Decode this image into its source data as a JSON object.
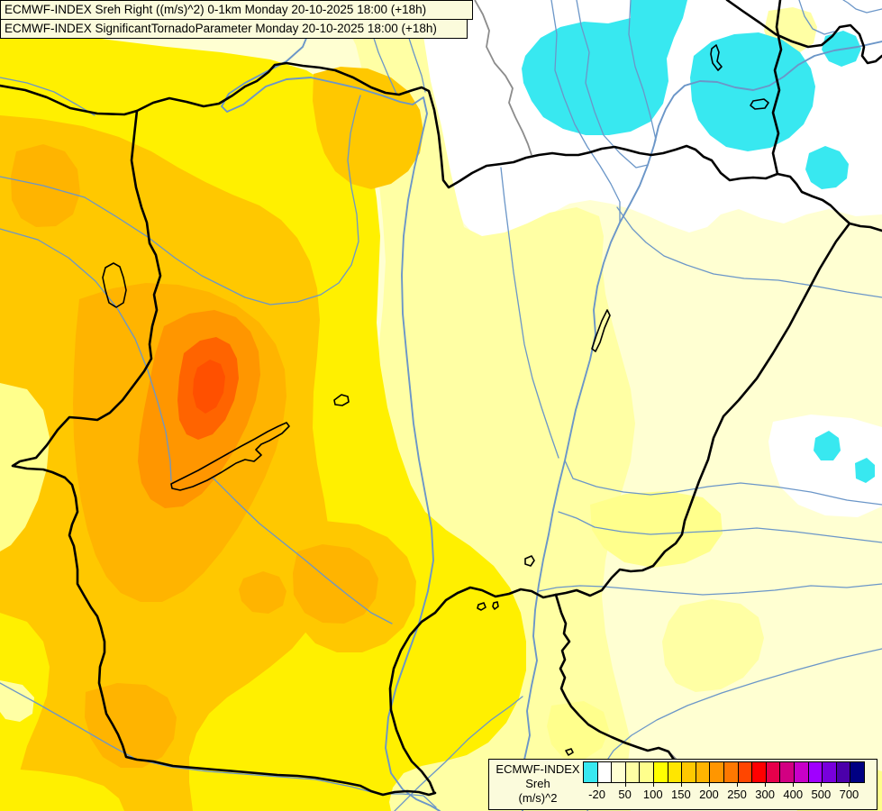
{
  "header": {
    "title_line1": "ECMWF-INDEX Sreh Right ((m/s)^2) 0-1km Monday 20-10-2025 18:00 (+18h)",
    "title_line2": "ECMWF-INDEX SignificantTornadoParameter Monday 20-10-2025 18:00 (+18h)"
  },
  "legend": {
    "product_label": "ECMWF-INDEX",
    "parameter_label": "Sreh",
    "units_label": "(m/s)^2",
    "swatch_colors": [
      "#38E8F0",
      "#FFFFFF",
      "#FFFFD2",
      "#FFFFA4",
      "#FFFF8C",
      "#FFFF00",
      "#FFE600",
      "#FFC800",
      "#FFB400",
      "#FF9600",
      "#FF7800",
      "#FF4600",
      "#FF0000",
      "#E6004B",
      "#D20082",
      "#C800C8",
      "#A000FF",
      "#7800DC",
      "#4B00AA",
      "#000082"
    ],
    "tick_labels": [
      "-20",
      "50",
      "100",
      "150",
      "200",
      "250",
      "300",
      "400",
      "500",
      "700"
    ],
    "tick_boundaries": [
      1,
      3,
      5,
      7,
      9,
      11,
      13,
      15,
      17,
      19
    ]
  },
  "map": {
    "region": "Hungary and surrounding countries",
    "field_palette": {
      "below_minus20": "#38E8F0",
      "near_zero": "#FFFFFF",
      "low": "#FFFFD2",
      "moderate": "#FFF000",
      "elevated": "#FFC800",
      "high": "#FFB400",
      "very_high": "#FF9600",
      "maximum_core": "#FF5000"
    },
    "line_colors": {
      "country_border": "#000000",
      "secondary_border": "#8C8C8C",
      "river": "#6B96C8"
    }
  }
}
